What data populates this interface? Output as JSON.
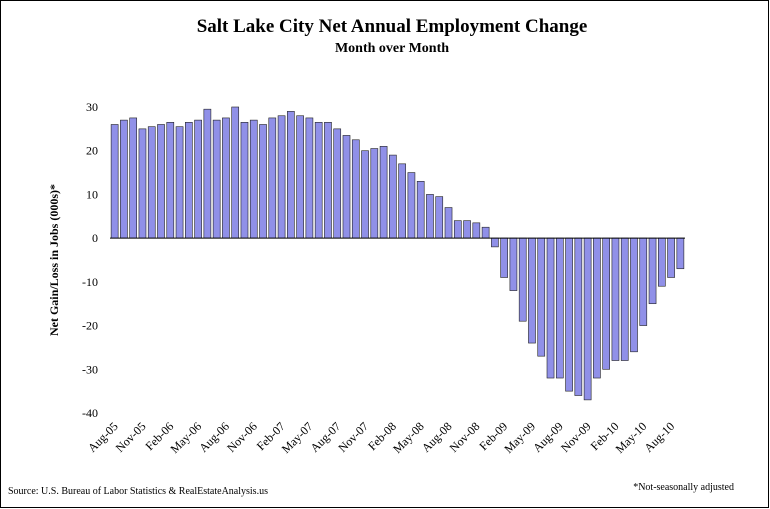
{
  "chart_data": {
    "type": "bar",
    "title": "Salt Lake City Net Annual Employment Change",
    "subtitle": "Month over Month",
    "y_label": "Net Gain/Loss in Jobs (000s)*",
    "source": "Source: U.S. Bureau of Labor Statistics & RealEstateAnalysis.us",
    "footnote": "*Not-seasonally adjusted",
    "color": "#9090e8",
    "categories": [
      "Aug-05",
      null,
      null,
      "Nov-05",
      null,
      null,
      "Feb-06",
      null,
      null,
      "May-06",
      null,
      null,
      "Aug-06",
      null,
      null,
      "Nov-06",
      null,
      null,
      "Feb-07",
      null,
      null,
      "May-07",
      null,
      null,
      "Aug-07",
      null,
      null,
      "Nov-07",
      null,
      null,
      "Feb-08",
      null,
      null,
      "May-08",
      null,
      null,
      "Aug-08",
      null,
      null,
      "Nov-08",
      null,
      null,
      "Feb-09",
      null,
      null,
      "May-09",
      null,
      null,
      "Aug-09",
      null,
      null,
      "Nov-09",
      null,
      null,
      "Feb-10",
      null,
      null,
      "May-10",
      null,
      null,
      "Aug-10",
      null
    ],
    "values": [
      26,
      27,
      27.5,
      25,
      25.5,
      26,
      26.5,
      25.5,
      26.5,
      27,
      29.5,
      27,
      27.5,
      30,
      26.5,
      27,
      26,
      27.5,
      28,
      29,
      28,
      27.5,
      26.5,
      26.5,
      25,
      23.5,
      22.5,
      20,
      20.5,
      21,
      19,
      17,
      15,
      13,
      10,
      9.5,
      7,
      4,
      4,
      3.5,
      2.5,
      -2,
      -9,
      -12,
      -19,
      -24,
      -27,
      -32,
      -32,
      -35,
      -36,
      -37,
      -32,
      -30,
      -28,
      -28,
      -26,
      -20,
      -15,
      -11,
      -9,
      -7
    ],
    "ylim": [
      -40,
      30
    ],
    "yticks": [
      -40,
      -30,
      -20,
      -10,
      0,
      10,
      20,
      30
    ]
  }
}
